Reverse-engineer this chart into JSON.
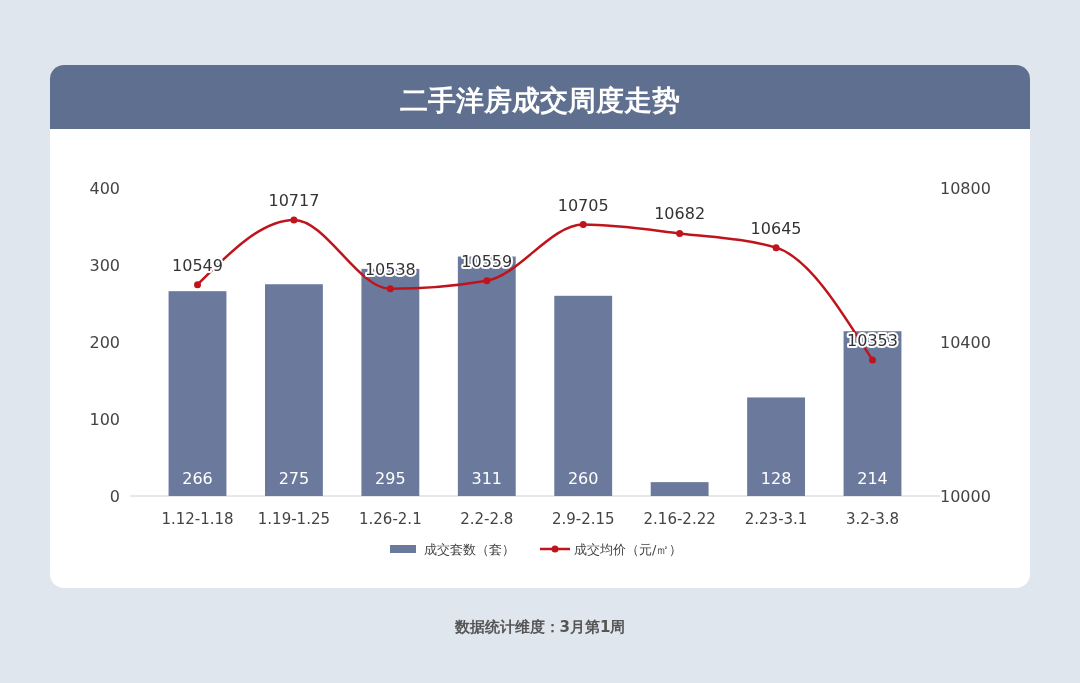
{
  "chart_data": {
    "type": "bar",
    "title": "二手洋房成交周度走势",
    "categories": [
      "1.12-1.18",
      "1.19-1.25",
      "1.26-2.1",
      "2.2-2.8",
      "2.9-2.15",
      "2.16-2.22",
      "2.23-3.1",
      "3.2-3.8"
    ],
    "series": [
      {
        "name": "成交套数（套）",
        "color": "#6b7a9c",
        "values": [
          266,
          275,
          295,
          311,
          260,
          18,
          128,
          214
        ],
        "value_labels": [
          "266",
          "275",
          "295",
          "311",
          "260",
          null,
          "128",
          "214"
        ]
      },
      {
        "name": "成交均价（元/㎡）",
        "type": "line",
        "axis": "y2",
        "color": "#c0141c",
        "values": [
          10549,
          10717,
          10538,
          10559,
          10705,
          10682,
          10645,
          10353
        ],
        "value_labels": [
          "10549",
          "10717",
          "10538",
          "10559",
          "10705",
          "10682",
          "10645",
          "10353"
        ]
      }
    ],
    "ylim": [
      0,
      400
    ],
    "yticks": [
      0,
      100,
      200,
      300,
      400
    ],
    "y2lim": [
      10000,
      10800
    ],
    "y2ticks": [
      10000,
      10400,
      10800
    ],
    "legend": "bottom",
    "marker": "circle",
    "grid": false,
    "annotations": [
      "数据统计维度：3月第1周"
    ]
  }
}
